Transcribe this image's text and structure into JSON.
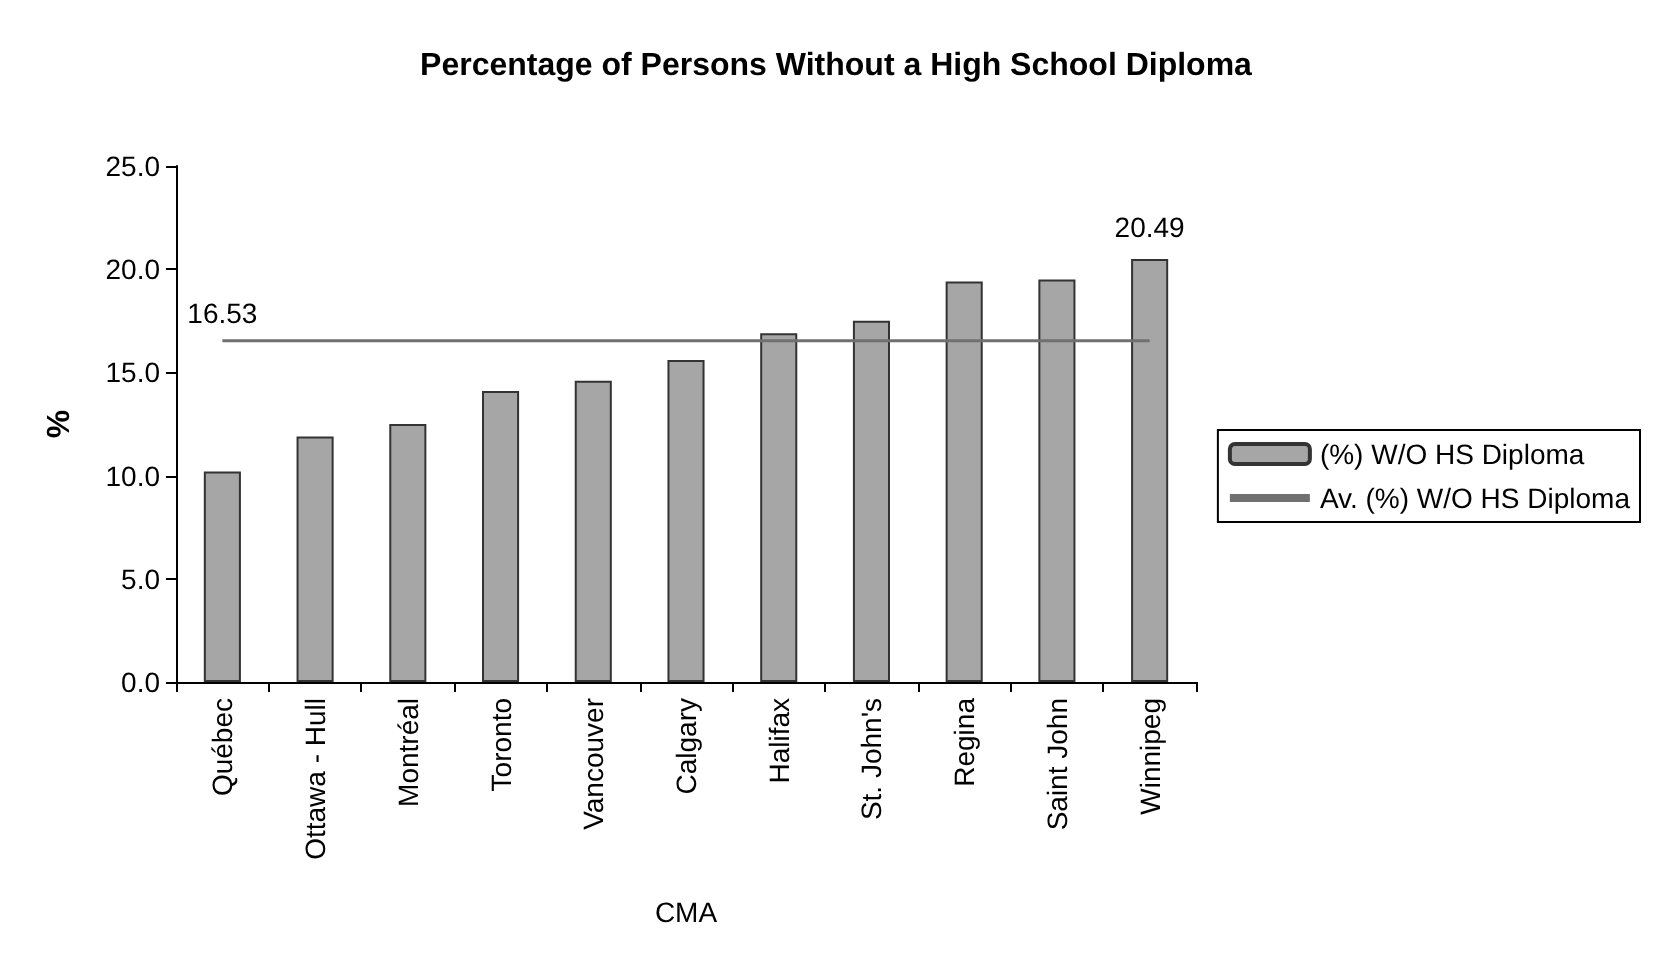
{
  "chart_data": {
    "type": "bar",
    "title": "Percentage of Persons Without a High School Diploma",
    "xlabel": "CMA",
    "ylabel": "%",
    "categories": [
      "Québec",
      "Ottawa - Hull",
      "Montréal",
      "Toronto",
      "Vancouver",
      "Calgary",
      "Halifax",
      "St. John's",
      "Regina",
      "Saint John",
      "Winnipeg"
    ],
    "series": [
      {
        "name": "(%) W/O HS Diploma",
        "color": "#a6a6a6",
        "values": [
          10.2,
          11.9,
          12.5,
          14.1,
          14.6,
          15.6,
          16.9,
          17.5,
          19.4,
          19.5,
          20.49
        ],
        "value_labels": [
          null,
          null,
          null,
          null,
          null,
          null,
          null,
          null,
          null,
          null,
          "20.49"
        ]
      },
      {
        "name": "Av. (%) W/O HS Diploma",
        "type": "line",
        "color": "#707070",
        "values": [
          16.53,
          16.53,
          16.53,
          16.53,
          16.53,
          16.53,
          16.53,
          16.53,
          16.53,
          16.53,
          16.53
        ],
        "value_labels": [
          "16.53",
          null,
          null,
          null,
          null,
          null,
          null,
          null,
          null,
          null,
          null
        ]
      }
    ],
    "ylim": [
      0,
      25
    ],
    "yticks": [
      {
        "value": 0,
        "label": "0.0"
      },
      {
        "value": 5,
        "label": "5.0"
      },
      {
        "value": 10,
        "label": "10.0"
      },
      {
        "value": 15,
        "label": "15.0"
      },
      {
        "value": 20,
        "label": "20.0"
      },
      {
        "value": 25,
        "label": "25.0"
      }
    ],
    "grid": false,
    "legend": "right",
    "marker": "none"
  }
}
